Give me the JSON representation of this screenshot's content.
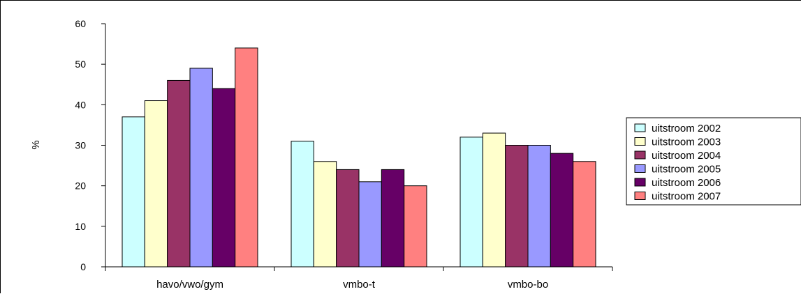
{
  "chart_data": {
    "type": "bar",
    "title": "",
    "xlabel": "",
    "ylabel": "%",
    "ylim": [
      0,
      60
    ],
    "yticks": [
      0,
      10,
      20,
      30,
      40,
      50,
      60
    ],
    "categories": [
      "havo/vwo/gym",
      "vmbo-t",
      "vmbo-bo"
    ],
    "series": [
      {
        "name": "uitstroom 2002",
        "color": "#CCFFFF",
        "values": [
          37,
          31,
          32
        ]
      },
      {
        "name": "uitstroom 2003",
        "color": "#FFFFCC",
        "values": [
          41,
          26,
          33
        ]
      },
      {
        "name": "uitstroom 2004",
        "color": "#993366",
        "values": [
          46,
          24,
          30
        ]
      },
      {
        "name": "uitstroom 2005",
        "color": "#9999FF",
        "values": [
          49,
          21,
          30
        ]
      },
      {
        "name": "uitstroom 2006",
        "color": "#660066",
        "values": [
          44,
          24,
          28
        ]
      },
      {
        "name": "uitstroom 2007",
        "color": "#FF8080",
        "values": [
          54,
          20,
          26
        ]
      }
    ],
    "grid": false,
    "legend": "right"
  }
}
